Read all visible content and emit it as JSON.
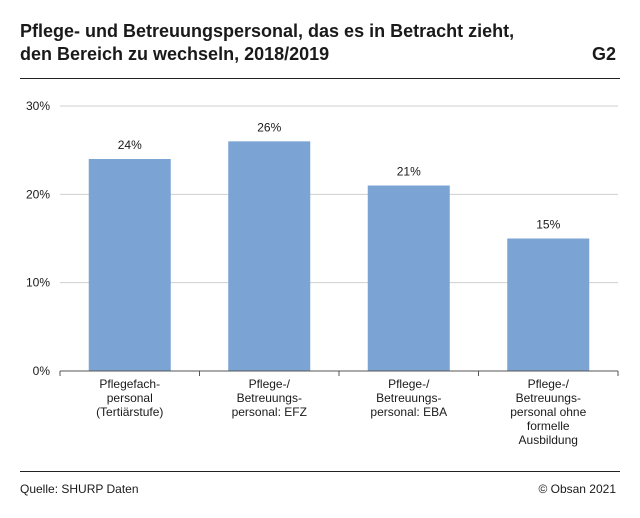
{
  "header": {
    "title": "Pflege- und Betreuungspersonal, das es in Betracht zieht, den Bereich zu wechseln, 2018/2019",
    "code": "G2"
  },
  "footer": {
    "source": "Quelle: SHURP Daten",
    "copyright": "© Obsan 2021"
  },
  "colors": {
    "bar": "#7ba3d4",
    "grid": "#cfcfcf",
    "axis": "#555555"
  },
  "chart_data": {
    "type": "bar",
    "title": "Pflege- und Betreuungspersonal, das es in Betracht zieht, den Bereich zu wechseln, 2018/2019",
    "xlabel": "",
    "ylabel": "",
    "ylim": [
      0,
      30
    ],
    "yticks": [
      0,
      10,
      20,
      30
    ],
    "ytick_labels": [
      "0%",
      "10%",
      "20%",
      "30%"
    ],
    "grid": true,
    "categories": [
      "Pflegefach-personal (Tertiärstufe)",
      "Pflege-/Betreuungs-personal: EFZ",
      "Pflege-/Betreuungs-personal: EBA",
      "Pflege-/Betreuungs-personal ohne formelle Ausbildung"
    ],
    "category_lines": [
      [
        "Pflegefach-",
        "personal",
        "(Tertiärstufe)"
      ],
      [
        "Pflege-/",
        "Betreuungs-",
        "personal: EFZ"
      ],
      [
        "Pflege-/",
        "Betreuungs-",
        "personal: EBA"
      ],
      [
        "Pflege-/",
        "Betreuungs-",
        "personal ohne",
        "formelle",
        "Ausbildung"
      ]
    ],
    "values": [
      24,
      26,
      21,
      15
    ],
    "value_labels": [
      "24%",
      "26%",
      "21%",
      "15%"
    ]
  }
}
